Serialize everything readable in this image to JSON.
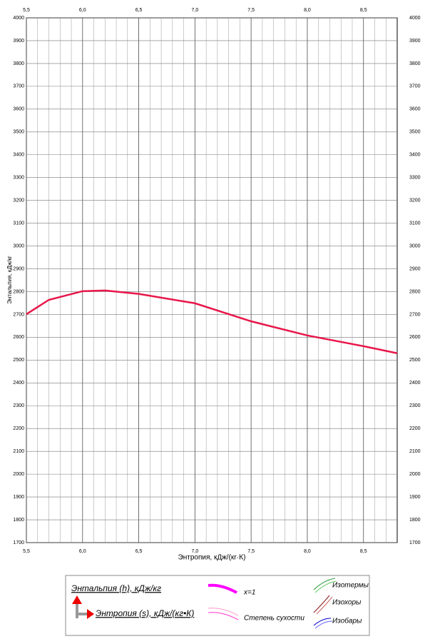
{
  "chart_data": {
    "type": "line",
    "x_label": "Энтропия, кДж/(кг·К)",
    "y_label": "Энтальпия, кДж/кг",
    "xlim": [
      5.5,
      8.8
    ],
    "ylim": [
      1700,
      4000
    ],
    "xticks": [
      {
        "value": 5.5,
        "label": "5,5"
      },
      {
        "value": 6.0,
        "label": "6,0"
      },
      {
        "value": 6.5,
        "label": "6,5"
      },
      {
        "value": 7.0,
        "label": "7,0"
      },
      {
        "value": 7.5,
        "label": "7,5"
      },
      {
        "value": 8.0,
        "label": "8,0"
      },
      {
        "value": 8.5,
        "label": "8,5"
      }
    ],
    "yticks": [
      1700,
      1800,
      1900,
      2000,
      2100,
      2200,
      2300,
      2400,
      2500,
      2600,
      2700,
      2800,
      2900,
      3000,
      3100,
      3200,
      3300,
      3400,
      3500,
      3600,
      3700,
      3800,
      3900,
      4000
    ],
    "grid": true,
    "x": [
      5.5,
      5.7,
      6.0,
      6.2,
      6.5,
      7.0,
      7.5,
      8.0,
      8.5,
      8.8
    ],
    "series": [
      {
        "name": "x=1",
        "color": "#e8174a",
        "values": [
          2701,
          2764,
          2802,
          2805,
          2790,
          2749,
          2670,
          2608,
          2561,
          2530
        ]
      }
    ],
    "legend": {
      "enthalpy": "Энтальпия (h), кДж/кг",
      "entropy": "Энтропия (s), кДж/(кг•К)",
      "dryness": "Степень сухости",
      "isotherms": "Изотермы",
      "isochores": "Изохоры",
      "isobars": "Изобары"
    }
  }
}
